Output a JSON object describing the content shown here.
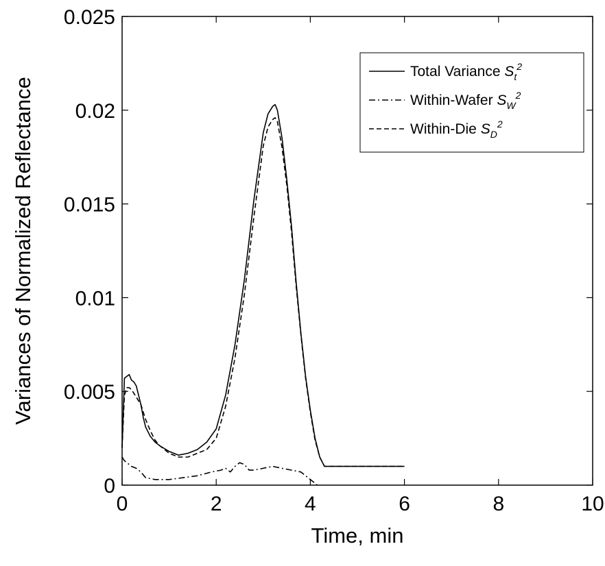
{
  "chart_data": {
    "type": "line",
    "xlabel": "Time, min",
    "ylabel": "Variances of Normalized Reflectance",
    "xlim": [
      0,
      10
    ],
    "ylim": [
      0,
      0.025
    ],
    "x_ticks": [
      "0",
      "2",
      "4",
      "6",
      "8",
      "10"
    ],
    "y_ticks": [
      "0",
      "0.005",
      "0.01",
      "0.015",
      "0.02",
      "0.025"
    ],
    "grid": false,
    "legend_position": "top-right",
    "series": [
      {
        "name": "Total Variance",
        "symbol": "S",
        "subscript": "t",
        "superscript": "2",
        "style": "solid",
        "x": [
          0,
          0.05,
          0.1,
          0.15,
          0.2,
          0.25,
          0.3,
          0.35,
          0.4,
          0.45,
          0.5,
          0.6,
          0.7,
          0.8,
          1.0,
          1.2,
          1.4,
          1.6,
          1.8,
          2.0,
          2.2,
          2.4,
          2.6,
          2.8,
          3.0,
          3.1,
          3.2,
          3.25,
          3.3,
          3.4,
          3.5,
          3.6,
          3.7,
          3.8,
          3.9,
          4.0,
          4.1,
          4.2,
          4.3,
          4.5,
          5.0,
          5.5,
          6.0
        ],
        "y": [
          0.002,
          0.0057,
          0.0058,
          0.0059,
          0.0056,
          0.0055,
          0.0053,
          0.0048,
          0.0043,
          0.0036,
          0.0031,
          0.0026,
          0.0023,
          0.0021,
          0.0018,
          0.0016,
          0.0017,
          0.0019,
          0.0023,
          0.003,
          0.0048,
          0.0075,
          0.011,
          0.0152,
          0.0188,
          0.0198,
          0.0202,
          0.0203,
          0.02,
          0.0185,
          0.0163,
          0.0138,
          0.0108,
          0.0081,
          0.0058,
          0.004,
          0.0025,
          0.0015,
          0.001,
          0.001,
          0.001,
          0.001,
          0.001
        ]
      },
      {
        "name": "Within-Wafer",
        "symbol": "S",
        "subscript": "W",
        "superscript": "2",
        "style": "dashdot",
        "x": [
          0,
          0.05,
          0.1,
          0.2,
          0.3,
          0.4,
          0.5,
          0.7,
          1.0,
          1.3,
          1.6,
          1.9,
          2.1,
          2.2,
          2.3,
          2.4,
          2.5,
          2.6,
          2.7,
          2.8,
          3.0,
          3.2,
          3.4,
          3.6,
          3.8,
          3.9,
          4.0,
          4.1,
          4.15
        ],
        "y": [
          0.0015,
          0.0013,
          0.0012,
          0.001,
          0.0009,
          0.0007,
          0.0004,
          0.0003,
          0.0003,
          0.0004,
          0.0005,
          0.0007,
          0.0008,
          0.0009,
          0.0007,
          0.001,
          0.0012,
          0.0011,
          0.0008,
          0.0008,
          0.0009,
          0.001,
          0.0009,
          0.0008,
          0.0007,
          0.0005,
          0.0003,
          0.0001,
          0
        ]
      },
      {
        "name": "Within-Die",
        "symbol": "S",
        "subscript": "D",
        "superscript": "2",
        "style": "dashed",
        "x": [
          0,
          0.05,
          0.1,
          0.15,
          0.2,
          0.3,
          0.4,
          0.5,
          0.6,
          0.7,
          0.8,
          1.0,
          1.2,
          1.4,
          1.6,
          1.8,
          2.0,
          2.2,
          2.4,
          2.6,
          2.8,
          3.0,
          3.1,
          3.2,
          3.25,
          3.3,
          3.4,
          3.5,
          3.6,
          3.7,
          3.8,
          3.9,
          4.0,
          4.1,
          4.2,
          4.3,
          4.5,
          5.0,
          5.5,
          6.0
        ],
        "y": [
          0.002,
          0.0048,
          0.0052,
          0.0052,
          0.0051,
          0.0047,
          0.0043,
          0.0035,
          0.0029,
          0.0024,
          0.0021,
          0.0017,
          0.0015,
          0.0015,
          0.0017,
          0.0019,
          0.0025,
          0.0042,
          0.0068,
          0.0102,
          0.0143,
          0.0181,
          0.0191,
          0.0195,
          0.0196,
          0.0194,
          0.018,
          0.016,
          0.0135,
          0.0106,
          0.008,
          0.0057,
          0.0039,
          0.0024,
          0.0015,
          0.001,
          0.001,
          0.001,
          0.001,
          0.001
        ]
      }
    ]
  }
}
